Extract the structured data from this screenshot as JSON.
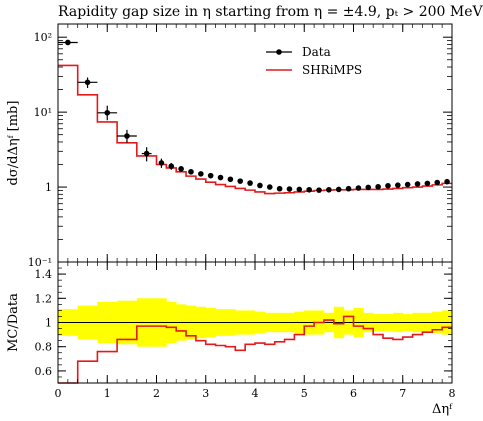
{
  "title": "Rapidity gap size in η starting from η = ±4.9, pₜ > 200 MeV",
  "chart_data": [
    {
      "type": "line",
      "panel": "main",
      "ylabel": "dσ/dΔηᶠ [mb]",
      "yscale": "log",
      "ylim": [
        0.1,
        150
      ],
      "xlim": [
        0,
        8
      ],
      "yticks": [
        {
          "v": 0.1,
          "label": "10⁻¹"
        },
        {
          "v": 1,
          "label": "1"
        },
        {
          "v": 10,
          "label": "10¹"
        },
        {
          "v": 100,
          "label": "10²"
        }
      ],
      "legend": {
        "position": "top-right",
        "entries": [
          "Data",
          "SHRiMPS"
        ]
      },
      "series": [
        {
          "name": "Data",
          "style": "points-with-error-bars",
          "color": "#000000",
          "points": [
            {
              "x": 0.2,
              "y": 85,
              "xerr": 0.2,
              "ylo": 82,
              "yhi": 88
            },
            {
              "x": 0.6,
              "y": 25,
              "xerr": 0.2,
              "ylo": 21,
              "yhi": 29
            },
            {
              "x": 1.0,
              "y": 9.8,
              "xerr": 0.2,
              "ylo": 7.8,
              "yhi": 12.2
            },
            {
              "x": 1.4,
              "y": 4.8,
              "xerr": 0.2,
              "ylo": 3.9,
              "yhi": 5.8
            },
            {
              "x": 1.8,
              "y": 2.8,
              "xerr": 0.1,
              "ylo": 2.2,
              "yhi": 3.4
            },
            {
              "x": 2.1,
              "y": 2.1,
              "xerr": 0.05,
              "ylo": 1.8,
              "yhi": 2.4
            },
            {
              "x": 2.3,
              "y": 1.9,
              "xerr": 0.05,
              "ylo": 1.7,
              "yhi": 2.1
            },
            {
              "x": 2.5,
              "y": 1.75,
              "xerr": 0.05,
              "ylo": 1.6,
              "yhi": 1.9
            },
            {
              "x": 2.7,
              "y": 1.6,
              "xerr": 0.05,
              "ylo": 1.48,
              "yhi": 1.72
            },
            {
              "x": 2.9,
              "y": 1.5,
              "xerr": 0.05,
              "ylo": 1.4,
              "yhi": 1.6
            },
            {
              "x": 3.1,
              "y": 1.42,
              "xerr": 0.05,
              "ylo": 1.33,
              "yhi": 1.5
            },
            {
              "x": 3.3,
              "y": 1.34,
              "xerr": 0.05,
              "ylo": 1.26,
              "yhi": 1.42
            },
            {
              "x": 3.5,
              "y": 1.27,
              "xerr": 0.05,
              "ylo": 1.2,
              "yhi": 1.34
            },
            {
              "x": 3.7,
              "y": 1.2,
              "xerr": 0.05,
              "ylo": 1.14,
              "yhi": 1.26
            },
            {
              "x": 3.9,
              "y": 1.13,
              "xerr": 0.05,
              "ylo": 1.08,
              "yhi": 1.18
            },
            {
              "x": 4.1,
              "y": 1.05,
              "xerr": 0.05,
              "ylo": 1.0,
              "yhi": 1.1
            },
            {
              "x": 4.3,
              "y": 1.0,
              "xerr": 0.05,
              "ylo": 0.96,
              "yhi": 1.04
            },
            {
              "x": 4.5,
              "y": 0.95,
              "xerr": 0.05,
              "ylo": 0.92,
              "yhi": 0.98
            },
            {
              "x": 4.7,
              "y": 0.94,
              "xerr": 0.05,
              "ylo": 0.91,
              "yhi": 0.97
            },
            {
              "x": 4.9,
              "y": 0.93,
              "xerr": 0.05,
              "ylo": 0.9,
              "yhi": 0.96
            },
            {
              "x": 5.1,
              "y": 0.92,
              "xerr": 0.05,
              "ylo": 0.89,
              "yhi": 0.95
            },
            {
              "x": 5.3,
              "y": 0.91,
              "xerr": 0.05,
              "ylo": 0.88,
              "yhi": 0.94
            },
            {
              "x": 5.5,
              "y": 0.92,
              "xerr": 0.05,
              "ylo": 0.89,
              "yhi": 0.95
            },
            {
              "x": 5.7,
              "y": 0.93,
              "xerr": 0.05,
              "ylo": 0.9,
              "yhi": 0.96
            },
            {
              "x": 5.9,
              "y": 0.95,
              "xerr": 0.05,
              "ylo": 0.92,
              "yhi": 0.98
            },
            {
              "x": 6.1,
              "y": 0.97,
              "xerr": 0.05,
              "ylo": 0.94,
              "yhi": 1.0
            },
            {
              "x": 6.3,
              "y": 0.99,
              "xerr": 0.05,
              "ylo": 0.95,
              "yhi": 1.03
            },
            {
              "x": 6.5,
              "y": 1.01,
              "xerr": 0.05,
              "ylo": 0.97,
              "yhi": 1.05
            },
            {
              "x": 6.7,
              "y": 1.04,
              "xerr": 0.05,
              "ylo": 1.0,
              "yhi": 1.08
            },
            {
              "x": 6.9,
              "y": 1.06,
              "xerr": 0.05,
              "ylo": 1.02,
              "yhi": 1.1
            },
            {
              "x": 7.1,
              "y": 1.08,
              "xerr": 0.05,
              "ylo": 1.04,
              "yhi": 1.12
            },
            {
              "x": 7.3,
              "y": 1.1,
              "xerr": 0.05,
              "ylo": 1.06,
              "yhi": 1.14
            },
            {
              "x": 7.5,
              "y": 1.12,
              "xerr": 0.05,
              "ylo": 1.08,
              "yhi": 1.16
            },
            {
              "x": 7.7,
              "y": 1.15,
              "xerr": 0.05,
              "ylo": 1.11,
              "yhi": 1.19
            },
            {
              "x": 7.9,
              "y": 1.18,
              "xerr": 0.05,
              "ylo": 1.14,
              "yhi": 1.22
            }
          ]
        },
        {
          "name": "SHRiMPS",
          "style": "step",
          "color": "#e31a1c",
          "edges": [
            0,
            0.4,
            0.8,
            1.2,
            1.6,
            2.0,
            2.2,
            2.4,
            2.6,
            2.8,
            3.0,
            3.2,
            3.4,
            3.6,
            3.8,
            4.0,
            4.2,
            4.4,
            4.6,
            4.8,
            5.0,
            5.2,
            5.4,
            5.6,
            5.8,
            6.0,
            6.2,
            6.4,
            6.6,
            6.8,
            7.0,
            7.2,
            7.4,
            7.6,
            7.8,
            8.0
          ],
          "values": [
            42,
            17,
            7.4,
            3.9,
            2.6,
            2.0,
            1.8,
            1.6,
            1.4,
            1.28,
            1.16,
            1.08,
            1.02,
            0.96,
            0.91,
            0.86,
            0.82,
            0.83,
            0.84,
            0.86,
            0.88,
            0.9,
            0.91,
            0.92,
            0.92,
            0.93,
            0.93,
            0.93,
            0.94,
            0.96,
            0.98,
            1.0,
            1.03,
            1.07,
            1.12
          ]
        }
      ]
    },
    {
      "type": "line",
      "panel": "ratio",
      "xlabel": "Δηᶠ",
      "ylabel": "MC/Data",
      "xlim": [
        0,
        8
      ],
      "ylim": [
        0.5,
        1.5
      ],
      "xticks": [
        0,
        1,
        2,
        3,
        4,
        5,
        6,
        7,
        8
      ],
      "yticks": [
        0.6,
        0.8,
        1,
        1.2,
        1.4
      ],
      "reference_line": 1.0,
      "band": {
        "color": "#ffff00",
        "edges": [
          0,
          0.4,
          0.8,
          1.2,
          1.6,
          2.0,
          2.2,
          2.4,
          2.6,
          2.8,
          3.0,
          3.2,
          3.4,
          3.6,
          3.8,
          4.0,
          4.2,
          4.4,
          4.6,
          4.8,
          5.0,
          5.2,
          5.4,
          5.6,
          5.8,
          6.0,
          6.2,
          6.4,
          6.6,
          6.8,
          7.0,
          7.2,
          7.4,
          7.6,
          7.8,
          8.0
        ],
        "lo": [
          0.89,
          0.86,
          0.83,
          0.82,
          0.8,
          0.8,
          0.83,
          0.85,
          0.86,
          0.87,
          0.88,
          0.89,
          0.89,
          0.9,
          0.9,
          0.91,
          0.92,
          0.92,
          0.92,
          0.91,
          0.9,
          0.9,
          0.92,
          0.87,
          0.9,
          0.88,
          0.92,
          0.93,
          0.93,
          0.92,
          0.93,
          0.92,
          0.92,
          0.91,
          0.9
        ],
        "hi": [
          1.11,
          1.14,
          1.17,
          1.18,
          1.2,
          1.2,
          1.17,
          1.15,
          1.14,
          1.13,
          1.12,
          1.11,
          1.11,
          1.1,
          1.1,
          1.09,
          1.08,
          1.08,
          1.08,
          1.09,
          1.1,
          1.1,
          1.08,
          1.13,
          1.1,
          1.12,
          1.08,
          1.07,
          1.07,
          1.08,
          1.07,
          1.08,
          1.08,
          1.09,
          1.1
        ]
      },
      "series": [
        {
          "name": "SHRiMPS",
          "style": "step",
          "color": "#e31a1c",
          "edges": [
            0,
            0.4,
            0.8,
            1.2,
            1.6,
            2.0,
            2.2,
            2.4,
            2.6,
            2.8,
            3.0,
            3.2,
            3.4,
            3.6,
            3.8,
            4.0,
            4.2,
            4.4,
            4.6,
            4.8,
            5.0,
            5.2,
            5.4,
            5.6,
            5.8,
            6.0,
            6.2,
            6.4,
            6.6,
            6.8,
            7.0,
            7.2,
            7.4,
            7.6,
            7.8,
            8.0
          ],
          "values": [
            0.5,
            0.68,
            0.76,
            0.86,
            0.97,
            0.97,
            0.96,
            0.93,
            0.89,
            0.85,
            0.82,
            0.81,
            0.8,
            0.77,
            0.82,
            0.83,
            0.82,
            0.84,
            0.86,
            0.9,
            0.97,
            1.0,
            1.02,
            0.99,
            1.05,
            0.97,
            0.95,
            0.9,
            0.87,
            0.86,
            0.88,
            0.9,
            0.92,
            0.94,
            0.96
          ]
        }
      ]
    }
  ]
}
